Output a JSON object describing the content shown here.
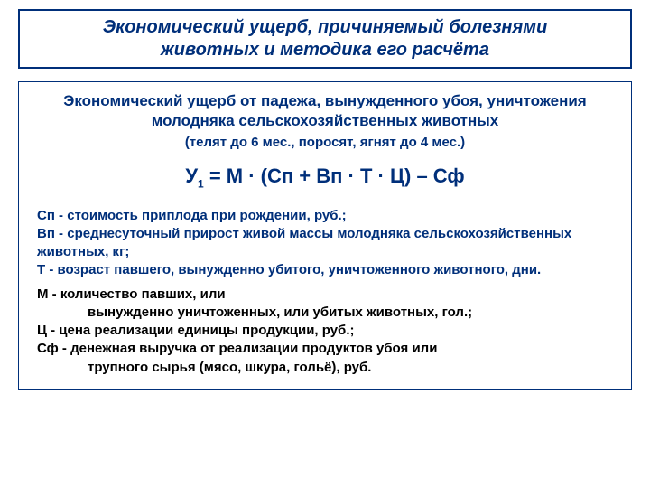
{
  "colors": {
    "accent": "#002f7a",
    "text_black": "#000000",
    "border": "#002f7a",
    "background": "#ffffff"
  },
  "typography": {
    "family": "Arial",
    "title_fontsize": 20,
    "subtitle_fontsize": 17,
    "note_fontsize": 15,
    "formula_fontsize": 22,
    "body_fontsize": 15
  },
  "title": {
    "line1": "Экономический ущерб, причиняемый болезнями",
    "line2": "животных и методика его расчёта"
  },
  "subtitle": "Экономический ущерб от падежа, вынужденного убоя, уничтожения молодняка сельскохозяйственных животных",
  "note": "(телят до 6 мес., поросят, ягнят до 4 мес.)",
  "formula_html": "У<sub>1</sub> = М · (Сп + Вп · Т · Ц) – Сф",
  "defs_blue": [
    "Сп - стоимость приплода при рождении, руб.;",
    "Вп - среднесуточный прирост живой массы молодняка сельскохозяйственных животных, кг;",
    "Т - возраст павшего, вынужденно убитого, уничтоженного животного, дни."
  ],
  "defs_black": {
    "m_lead": "М -   количество павших,  или",
    "m_cont": "вынужденно уничтоженных, или убитых животных, гол.;",
    "c": "Ц -   цена реализации единицы продукции, руб.;",
    "sf_lead": "Сф - денежная выручка от реализации продуктов убоя или",
    "sf_cont": "трупного сырья (мясо, шкура, гольё), руб."
  }
}
